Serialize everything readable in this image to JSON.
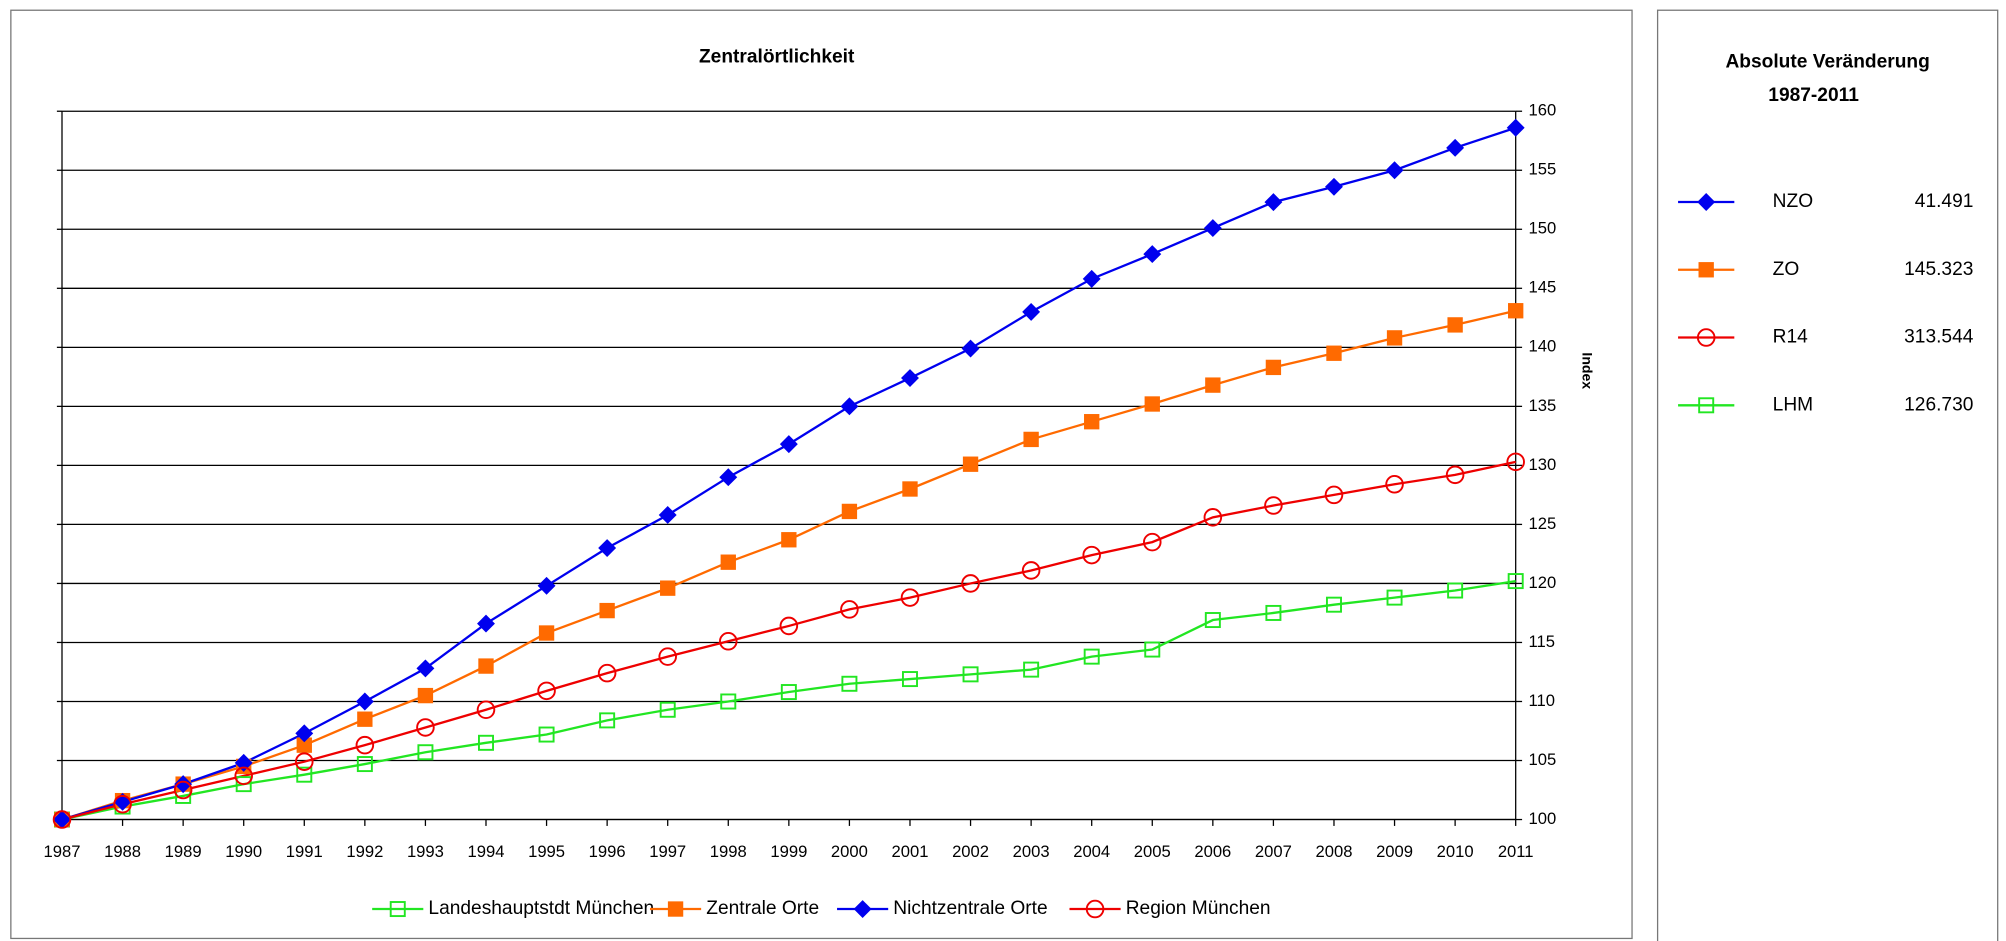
{
  "chart_data": {
    "type": "line",
    "title": "Zentralörtlichkeit",
    "y_label": "Index",
    "x": [
      1987,
      1988,
      1989,
      1990,
      1991,
      1992,
      1993,
      1994,
      1995,
      1996,
      1997,
      1998,
      1999,
      2000,
      2001,
      2002,
      2003,
      2004,
      2005,
      2006,
      2007,
      2008,
      2009,
      2010,
      2011
    ],
    "xlim": [
      1987,
      2011
    ],
    "ylim": [
      100,
      160
    ],
    "yticks": [
      100,
      105,
      110,
      115,
      120,
      125,
      130,
      135,
      140,
      145,
      150,
      155,
      160
    ],
    "grid": true,
    "legend": "bottom",
    "series": [
      {
        "name": "Landeshauptstdt München",
        "color": "#22e622",
        "marker": "open-square",
        "values": [
          100,
          101.1,
          102,
          103,
          103.8,
          104.7,
          105.7,
          106.5,
          107.2,
          108.4,
          109.3,
          110,
          110.8,
          111.5,
          111.9,
          112.3,
          112.7,
          113.8,
          114.4,
          116.9,
          117.5,
          118.2,
          118.8,
          119.4,
          120.2
        ]
      },
      {
        "name": "Zentrale Orte",
        "color": "#ff6a00",
        "marker": "square",
        "values": [
          100,
          101.6,
          103,
          104.5,
          106.3,
          108.5,
          110.5,
          113,
          115.8,
          117.7,
          119.6,
          121.8,
          123.7,
          126.1,
          128,
          130.1,
          132.2,
          133.7,
          135.2,
          136.8,
          138.3,
          139.5,
          140.8,
          141.9,
          143.1
        ]
      },
      {
        "name": "Nichtzentrale Orte",
        "color": "#0000ee",
        "marker": "diamond",
        "values": [
          100,
          101.5,
          103,
          104.8,
          107.3,
          110,
          112.8,
          116.6,
          119.8,
          123,
          125.8,
          129,
          131.8,
          135,
          137.4,
          139.9,
          143,
          145.8,
          147.9,
          150.1,
          152.3,
          153.6,
          155,
          156.9,
          158.6
        ]
      },
      {
        "name": "Region München",
        "color": "#ee0000",
        "marker": "open-circle",
        "values": [
          100,
          101.3,
          102.5,
          103.7,
          104.9,
          106.3,
          107.8,
          109.3,
          110.9,
          112.4,
          113.8,
          115.1,
          116.4,
          117.8,
          118.8,
          120,
          121.1,
          122.4,
          123.5,
          125.6,
          126.6,
          127.5,
          128.4,
          129.2,
          130.3
        ]
      }
    ]
  },
  "panel": {
    "title": "Absolute Veränderung",
    "subtitle": "1987-2011",
    "entries": [
      {
        "label": "NZO",
        "value": "41.491",
        "color": "#0000ee",
        "marker": "diamond"
      },
      {
        "label": "ZO",
        "value": "145.323",
        "color": "#ff6a00",
        "marker": "square"
      },
      {
        "label": "R14",
        "value": "313.544",
        "color": "#ee0000",
        "marker": "open-circle"
      },
      {
        "label": "LHM",
        "value": "126.730",
        "color": "#22e622",
        "marker": "open-square"
      }
    ]
  }
}
